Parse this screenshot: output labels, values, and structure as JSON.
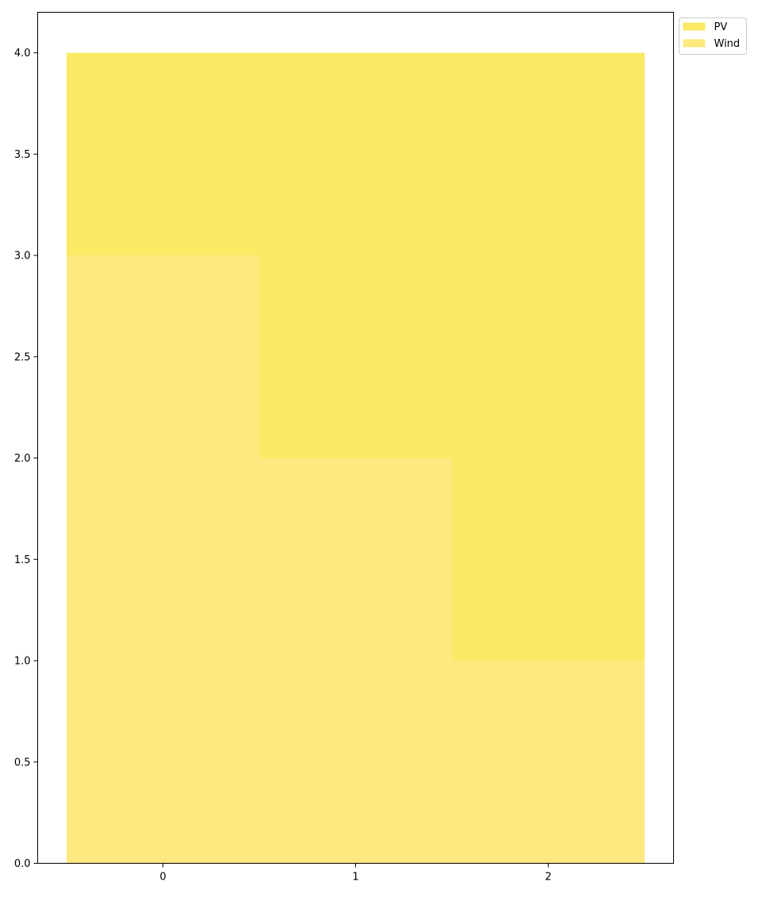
{
  "chart_data": {
    "type": "bar",
    "stacked": true,
    "categories": [
      "0",
      "1",
      "2"
    ],
    "series": [
      {
        "name": "Wind",
        "values": [
          3,
          2,
          1
        ],
        "color": "#fde97f",
        "stack_order": 0
      },
      {
        "name": "PV",
        "values": [
          1,
          2,
          3
        ],
        "color": "#fbe966",
        "stack_order": 1
      }
    ],
    "legend_order": [
      "PV",
      "Wind"
    ],
    "legend_position": "outside-top-right",
    "ylim": [
      0,
      4.2
    ],
    "y_ticks": [
      0.0,
      0.5,
      1.0,
      1.5,
      2.0,
      2.5,
      3.0,
      3.5,
      4.0
    ],
    "y_tick_labels": [
      "0.0",
      "0.5",
      "1.0",
      "1.5",
      "2.0",
      "2.5",
      "3.0",
      "3.5",
      "4.0"
    ],
    "x_tick_labels": [
      "0",
      "1",
      "2"
    ],
    "grid": false,
    "title": "",
    "xlabel": "",
    "ylabel": ""
  }
}
